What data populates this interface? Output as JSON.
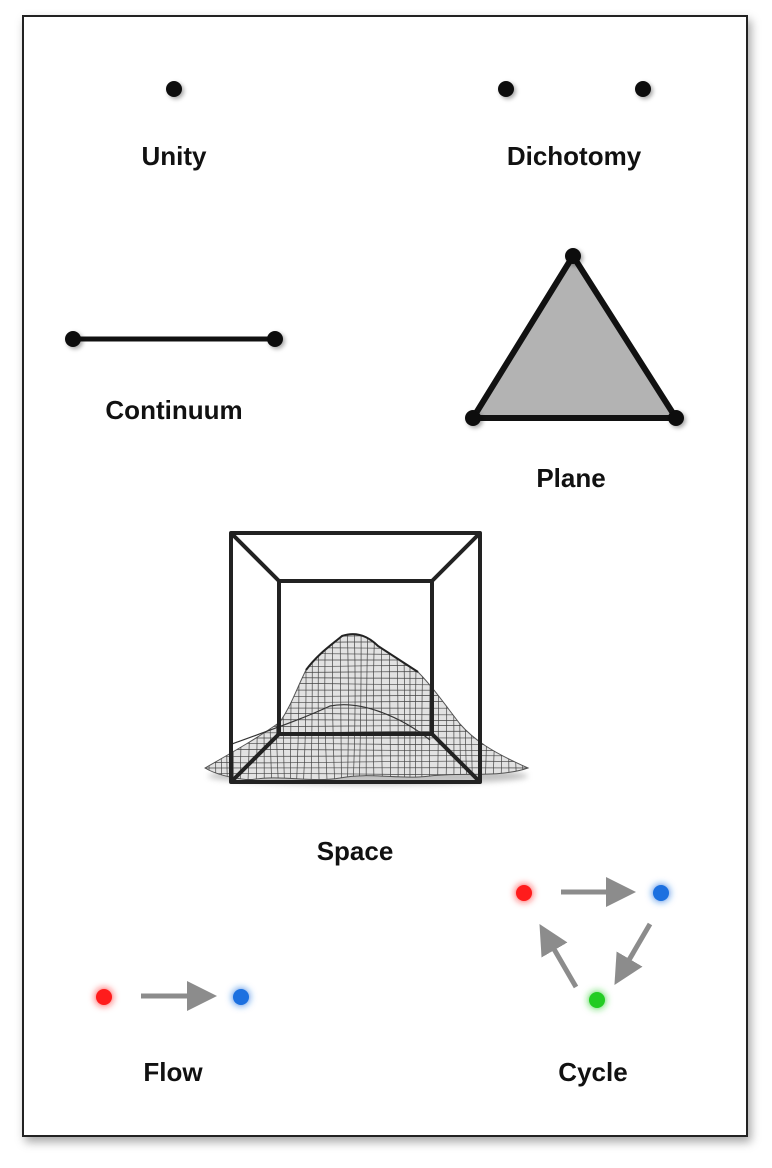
{
  "labels": {
    "unity": "Unity",
    "dichotomy": "Dichotomy",
    "continuum": "Continuum",
    "plane": "Plane",
    "space": "Space",
    "flow": "Flow",
    "cycle": "Cycle"
  },
  "colors": {
    "ink": "#111111",
    "triangle_fill": "#b3b3b3",
    "arrow": "#8c8c8c",
    "red_node": "#ff1a1a",
    "blue_node": "#1a6fe0",
    "green_node": "#22cc22"
  }
}
